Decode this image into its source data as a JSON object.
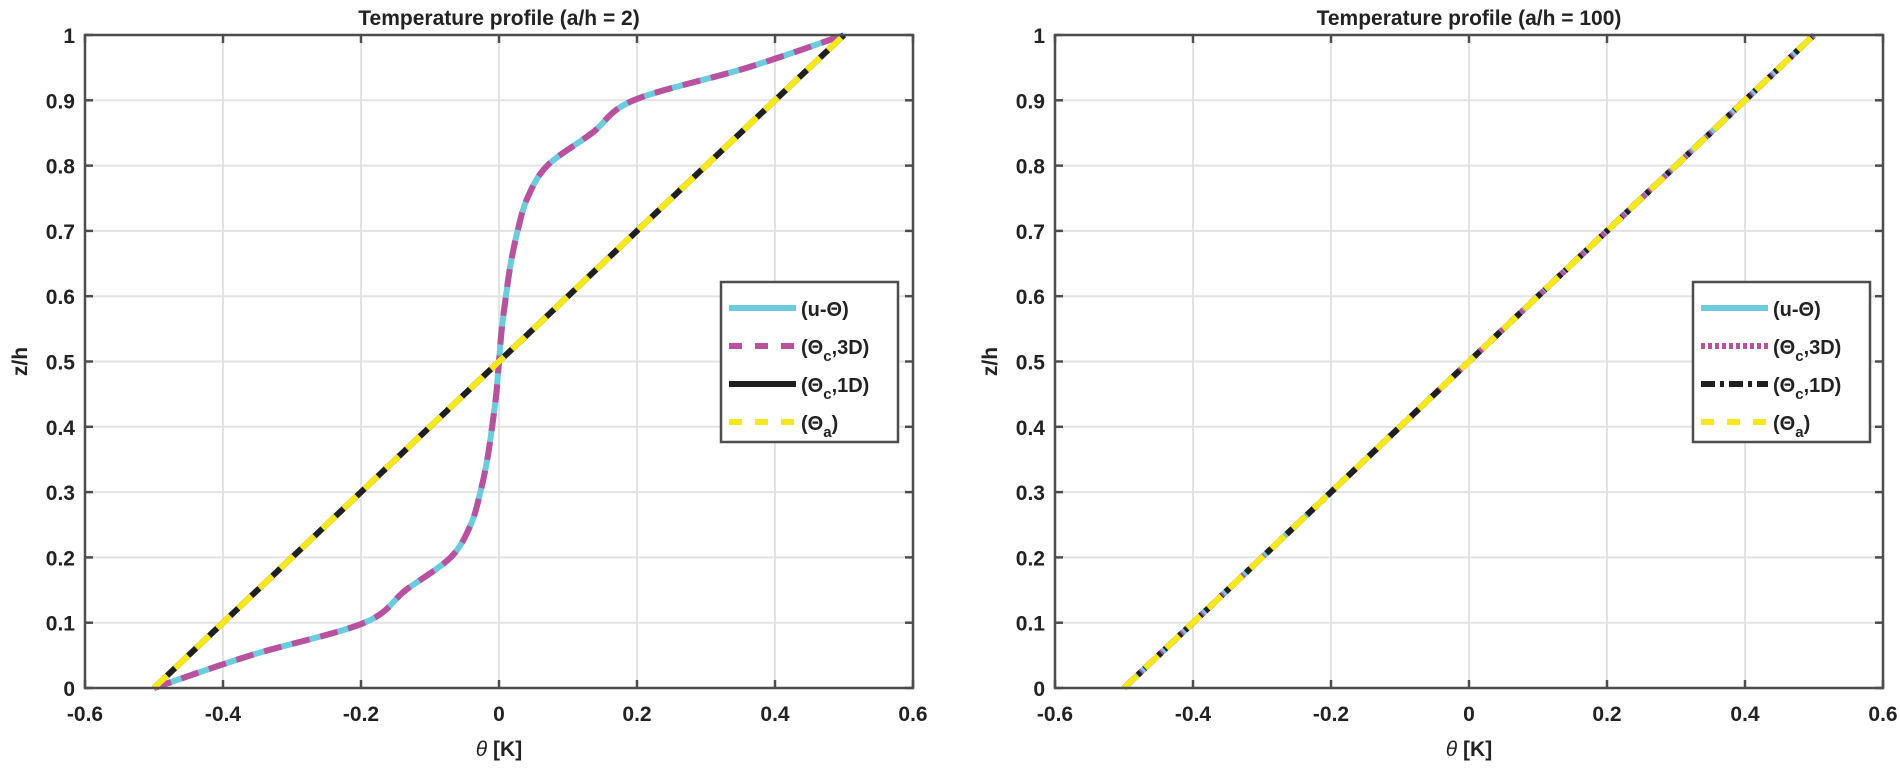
{
  "chart_data": [
    {
      "type": "line",
      "title": "Temperature profile (a/h = 2)",
      "xlabel_symbol": "θ",
      "xlabel_unit": " [K]",
      "ylabel": "z/h",
      "xlim": [
        -0.6,
        0.6
      ],
      "ylim": [
        0,
        1
      ],
      "xticks": [
        "-0.6",
        "-0.4",
        "-0.2",
        "0",
        "0.2",
        "0.4",
        "0.6"
      ],
      "yticks": [
        "0",
        "0.1",
        "0.2",
        "0.3",
        "0.4",
        "0.5",
        "0.6",
        "0.7",
        "0.8",
        "0.9",
        "1"
      ],
      "grid": true,
      "legend_placement": "right",
      "series": [
        {
          "name": "(u-Θ)",
          "legend_main": "(u-Θ)",
          "legend_sub": "",
          "legend_tail": "",
          "color": "#6ccbdc",
          "style": "solid",
          "x": [
            -0.5,
            -0.36,
            -0.195,
            -0.135,
            -0.07,
            -0.041,
            -0.027,
            -0.017,
            -0.01,
            -0.004,
            0,
            0.004,
            0.01,
            0.017,
            0.027,
            0.041,
            0.07,
            0.135,
            0.195,
            0.36,
            0.5
          ],
          "y": [
            0,
            0.05,
            0.1,
            0.15,
            0.2,
            0.25,
            0.3,
            0.35,
            0.4,
            0.45,
            0.5,
            0.55,
            0.6,
            0.65,
            0.7,
            0.75,
            0.8,
            0.85,
            0.9,
            0.95,
            1
          ]
        },
        {
          "name": "(Θc,3D)",
          "legend_main": "(Θ",
          "legend_sub": "c",
          "legend_tail": ",3D)",
          "color": "#b9519f",
          "style": "dashed",
          "x": [
            -0.5,
            -0.36,
            -0.195,
            -0.135,
            -0.07,
            -0.041,
            -0.027,
            -0.017,
            -0.01,
            -0.004,
            0,
            0.004,
            0.01,
            0.017,
            0.027,
            0.041,
            0.07,
            0.135,
            0.195,
            0.36,
            0.5
          ],
          "y": [
            0,
            0.05,
            0.1,
            0.15,
            0.2,
            0.25,
            0.3,
            0.35,
            0.4,
            0.45,
            0.5,
            0.55,
            0.6,
            0.65,
            0.7,
            0.75,
            0.8,
            0.85,
            0.9,
            0.95,
            1
          ]
        },
        {
          "name": "(Θc,1D)",
          "legend_main": "(Θ",
          "legend_sub": "c",
          "legend_tail": ",1D)",
          "color": "#1f1f1f",
          "style": "solid",
          "x": [
            -0.5,
            0.5
          ],
          "y": [
            0,
            1
          ]
        },
        {
          "name": "(Θa)",
          "legend_main": "(Θ",
          "legend_sub": "a",
          "legend_tail": ")",
          "color": "#f7e81b",
          "style": "dashed",
          "x": [
            -0.5,
            0.5
          ],
          "y": [
            0,
            1
          ]
        }
      ]
    },
    {
      "type": "line",
      "title": "Temperature profile (a/h = 100)",
      "xlabel_symbol": "θ",
      "xlabel_unit": " [K]",
      "ylabel": "z/h",
      "xlim": [
        -0.6,
        0.6
      ],
      "ylim": [
        0,
        1
      ],
      "xticks": [
        "-0.6",
        "-0.4",
        "-0.2",
        "0",
        "0.2",
        "0.4",
        "0.6"
      ],
      "yticks": [
        "0",
        "0.1",
        "0.2",
        "0.3",
        "0.4",
        "0.5",
        "0.6",
        "0.7",
        "0.8",
        "0.9",
        "1"
      ],
      "grid": true,
      "legend_placement": "right",
      "series": [
        {
          "name": "(u-Θ)",
          "legend_main": "(u-Θ)",
          "legend_sub": "",
          "legend_tail": "",
          "color": "#6ccbdc",
          "style": "solid",
          "x": [
            -0.5,
            0.5
          ],
          "y": [
            0,
            1
          ]
        },
        {
          "name": "(Θc,3D)",
          "legend_main": "(Θ",
          "legend_sub": "c",
          "legend_tail": ",3D)",
          "color": "#b9519f",
          "style": "dotted",
          "x": [
            -0.5,
            0.5
          ],
          "y": [
            0,
            1
          ]
        },
        {
          "name": "(Θc,1D)",
          "legend_main": "(Θ",
          "legend_sub": "c",
          "legend_tail": ",1D)",
          "color": "#1f1f1f",
          "style": "dashdot",
          "x": [
            -0.5,
            0.5
          ],
          "y": [
            0,
            1
          ]
        },
        {
          "name": "(Θa)",
          "legend_main": "(Θ",
          "legend_sub": "a",
          "legend_tail": ")",
          "color": "#f7e81b",
          "style": "dashed",
          "x": [
            -0.5,
            0.5
          ],
          "y": [
            0,
            1
          ]
        }
      ]
    }
  ]
}
